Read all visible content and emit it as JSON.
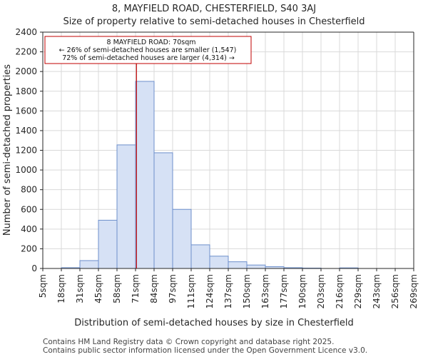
{
  "chart_data": {
    "type": "bar",
    "title_line1": "8, MAYFIELD ROAD, CHESTERFIELD, S40 3AJ",
    "title_line2": "Size of property relative to semi-detached houses in Chesterfield",
    "xlabel": "Distribution of semi-detached houses by size in Chesterfield",
    "ylabel": "Number of semi-detached properties",
    "categories": [
      "5sqm",
      "18sqm",
      "31sqm",
      "45sqm",
      "58sqm",
      "71sqm",
      "84sqm",
      "97sqm",
      "111sqm",
      "124sqm",
      "137sqm",
      "150sqm",
      "163sqm",
      "177sqm",
      "190sqm",
      "203sqm",
      "216sqm",
      "229sqm",
      "243sqm",
      "256sqm",
      "269sqm"
    ],
    "values": [
      0,
      8,
      80,
      490,
      1255,
      1900,
      1175,
      600,
      240,
      125,
      68,
      35,
      18,
      8,
      4,
      0,
      6,
      0,
      0,
      0,
      0
    ],
    "yticks": [
      0,
      200,
      400,
      600,
      800,
      1000,
      1200,
      1400,
      1600,
      1800,
      2000,
      2200,
      2400
    ],
    "ylim": [
      0,
      2400
    ],
    "grid": true,
    "bar_color": "#d6e1f5",
    "bar_edge_color": "#6d8fcb",
    "grid_color": "#d9d9d9",
    "marker": {
      "value_index": 5.05,
      "color": "#c00000",
      "annotation": [
        "8 MAYFIELD ROAD: 70sqm",
        "← 26% of semi-detached houses are smaller (1,547)",
        "72% of semi-detached houses are larger (4,314) →"
      ]
    },
    "footer": [
      "Contains HM Land Registry data © Crown copyright and database right 2025.",
      "Contains public sector information licensed under the Open Government Licence v3.0."
    ]
  }
}
